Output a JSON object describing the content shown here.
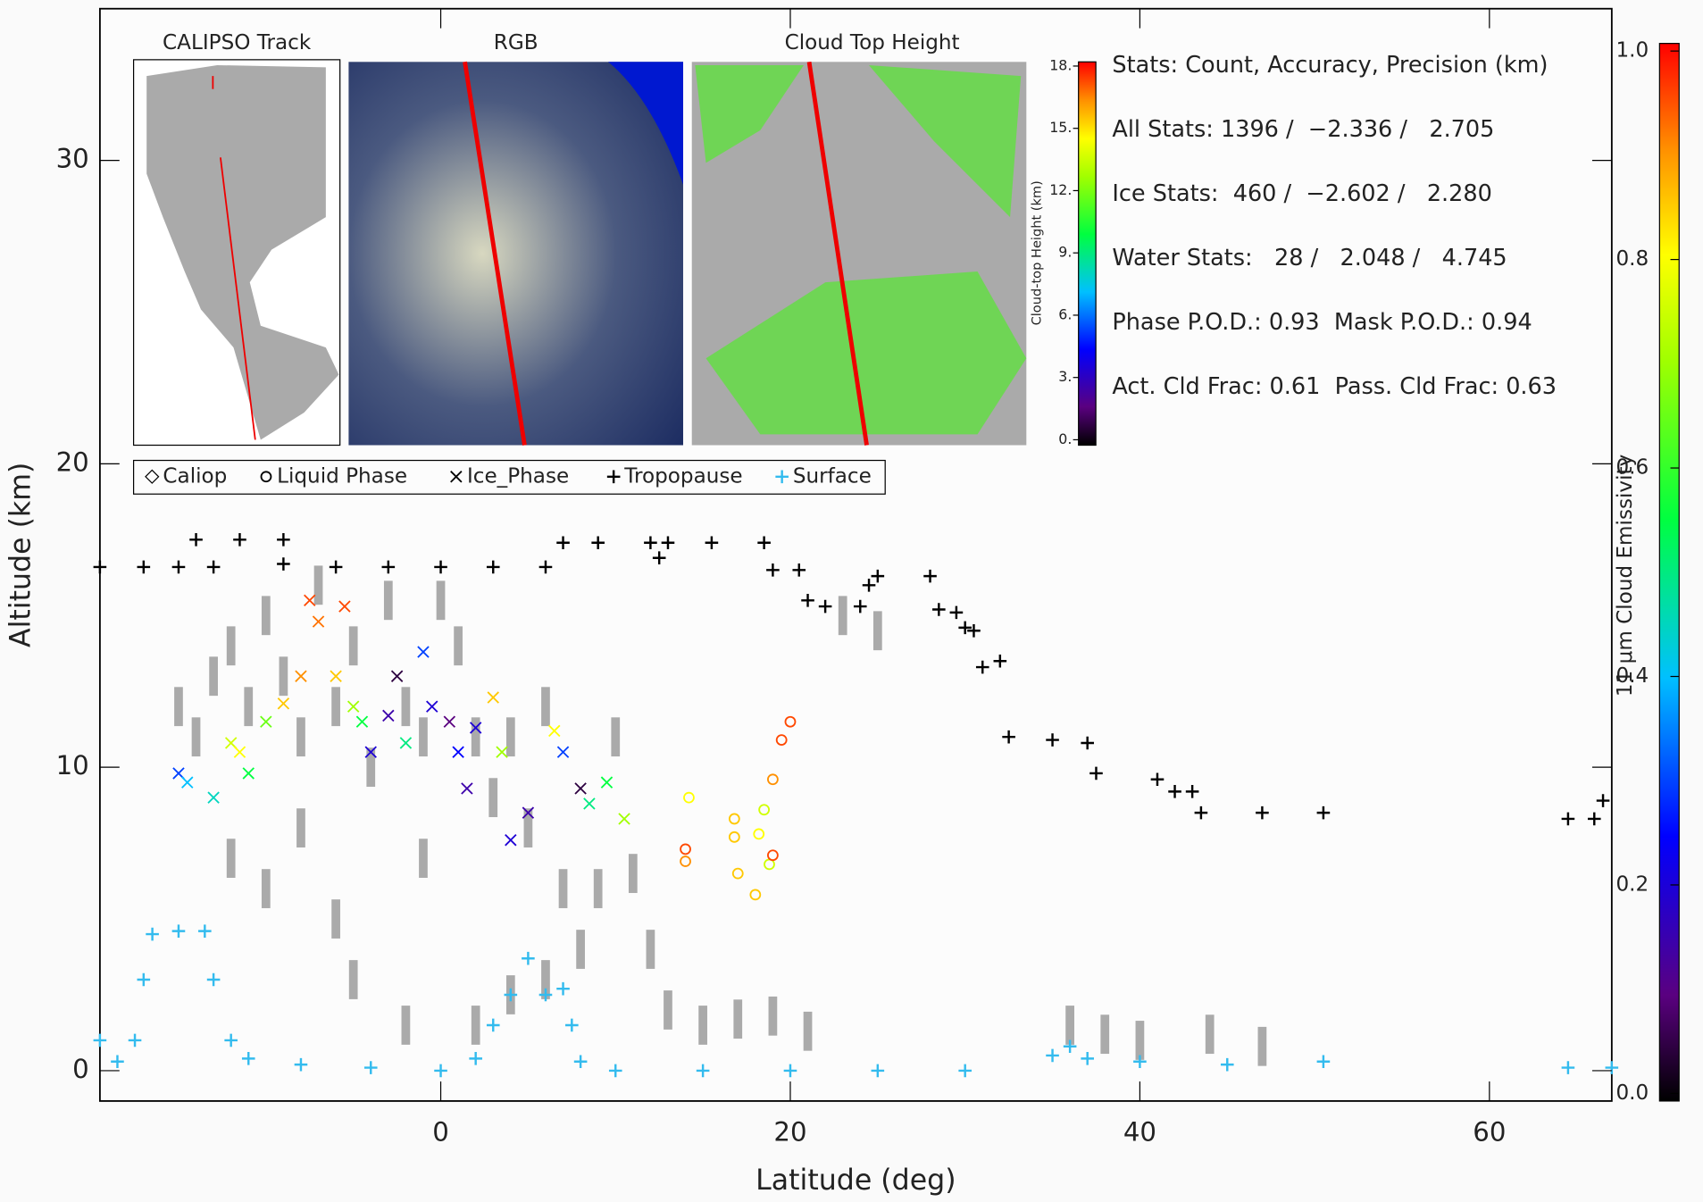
{
  "chart_data": {
    "type": "scatter",
    "xlabel": "Latitude (deg)",
    "ylabel": "Altitude (km)",
    "xlim": [
      -19.5,
      67
    ],
    "ylim": [
      -1,
      35
    ],
    "xticks": [
      0,
      20,
      40,
      60
    ],
    "yticks": [
      0,
      10,
      20,
      30
    ],
    "colormap": "rainbow",
    "series": [
      {
        "name": "Caliop",
        "color": "#aaaaaa",
        "marker": "rect",
        "x": [
          -15,
          -14,
          -13,
          -12,
          -11,
          -10,
          -9,
          -8,
          -7,
          -6,
          -5,
          -4,
          -3,
          -2,
          -1,
          0,
          1,
          2,
          3,
          4,
          5,
          6,
          7,
          8,
          9,
          10,
          11,
          12,
          13,
          15,
          17,
          19,
          21,
          -12,
          -10,
          -8,
          -5,
          -2,
          2,
          4,
          6,
          23,
          25,
          36,
          38,
          40,
          44,
          47,
          -6,
          -1
        ],
        "values": [
          12,
          11,
          13,
          14,
          12,
          15,
          13,
          11,
          16,
          12,
          14,
          10,
          15.5,
          12,
          11,
          15.5,
          14,
          11,
          9,
          11,
          8,
          12,
          6,
          4,
          6,
          11,
          6.5,
          4,
          2,
          1.5,
          1.7,
          1.8,
          1.3,
          7,
          6,
          8,
          3,
          1.5,
          1.5,
          2.5,
          3,
          15,
          14.5,
          1.5,
          1.2,
          1,
          1.2,
          0.8,
          5,
          7
        ]
      },
      {
        "name": "Liquid Phase",
        "color": "#000000",
        "marker": "circle",
        "x": [
          14,
          14,
          14.2,
          16.8,
          16.8,
          17,
          18,
          18.2,
          18.5,
          18.8,
          19,
          19,
          19.5,
          20
        ],
        "values": [
          7.3,
          6.9,
          9,
          8.3,
          7.7,
          6.5,
          5.8,
          7.8,
          8.6,
          6.8,
          9.6,
          7.1,
          10.9,
          11.5
        ],
        "emissivity": [
          0.95,
          0.9,
          0.8,
          0.85,
          0.85,
          0.85,
          0.85,
          0.8,
          0.75,
          0.75,
          0.9,
          0.95,
          0.95,
          0.95
        ]
      },
      {
        "name": "Ice_Phase",
        "color": "#000000",
        "marker": "x",
        "x": [
          -15,
          -14.5,
          -13,
          -12,
          -11.5,
          -11,
          -10,
          -9,
          -8,
          -7.5,
          -7,
          -6,
          -5.5,
          -5,
          -4.5,
          -4,
          -3,
          -2,
          -1,
          -0.5,
          0.5,
          1,
          1.5,
          2,
          3,
          3.5,
          4,
          5,
          6.5,
          7,
          8,
          8.5,
          9.5,
          10.5,
          -2.5
        ],
        "values": [
          9.8,
          9.5,
          9,
          10.8,
          10.5,
          9.8,
          11.5,
          12.1,
          13,
          15.5,
          14.8,
          13,
          15.3,
          12,
          11.5,
          10.5,
          11.7,
          10.8,
          13.8,
          12,
          11.5,
          10.5,
          9.3,
          11.3,
          12.3,
          10.5,
          7.6,
          8.5,
          11.2,
          10.5,
          9.3,
          8.8,
          9.5,
          8.3,
          13
        ],
        "emissivity": [
          0.3,
          0.4,
          0.45,
          0.75,
          0.8,
          0.55,
          0.65,
          0.85,
          0.9,
          0.95,
          0.92,
          0.85,
          0.95,
          0.7,
          0.55,
          0.2,
          0.15,
          0.5,
          0.3,
          0.2,
          0.1,
          0.25,
          0.15,
          0.2,
          0.85,
          0.7,
          0.2,
          0.15,
          0.8,
          0.3,
          0.05,
          0.5,
          0.55,
          0.7,
          0.05
        ]
      },
      {
        "name": "Tropopause",
        "color": "#000000",
        "marker": "plus",
        "x": [
          -19.5,
          -17,
          -15,
          -13,
          -14,
          -11.5,
          -9,
          -9,
          -6,
          -3,
          0,
          3,
          6,
          7,
          9,
          12,
          12.5,
          13,
          15.5,
          18.5,
          19,
          20.5,
          21,
          22,
          24,
          24.5,
          25,
          28,
          28.5,
          29.5,
          30,
          30.5,
          31,
          32,
          32.5,
          35,
          37,
          37.5,
          41,
          42,
          43,
          43.5,
          47,
          50.5,
          64.5,
          66,
          66.5
        ],
        "values": [
          16.6,
          16.6,
          16.6,
          16.6,
          17.5,
          17.5,
          17.5,
          16.7,
          16.6,
          16.6,
          16.6,
          16.6,
          16.6,
          17.4,
          17.4,
          17.4,
          16.9,
          17.4,
          17.4,
          17.4,
          16.5,
          16.5,
          15.5,
          15.3,
          15.3,
          16,
          16.3,
          16.3,
          15.2,
          15.1,
          14.6,
          14.5,
          13.3,
          13.5,
          11,
          10.9,
          10.8,
          9.8,
          9.6,
          9.2,
          9.2,
          8.5,
          8.5,
          8.5,
          8.3,
          8.3,
          8.9
        ]
      },
      {
        "name": "Surface",
        "color": "#33bbee",
        "marker": "plus",
        "x": [
          -19.5,
          -18.5,
          -17.5,
          -17,
          -16.5,
          -15,
          -13.5,
          -13,
          -12,
          -11,
          -8,
          -4,
          0,
          2,
          3,
          4,
          5,
          6,
          7,
          7.5,
          8,
          10,
          15,
          20,
          25,
          30,
          35,
          36,
          37,
          40,
          45,
          50.5,
          64.5,
          67
        ],
        "values": [
          1,
          0.3,
          1,
          3,
          4.5,
          4.6,
          4.6,
          3,
          1,
          0.4,
          0.2,
          0.1,
          0,
          0.4,
          1.5,
          2.5,
          3.7,
          2.5,
          2.7,
          1.5,
          0.3,
          0,
          0,
          0,
          0,
          0,
          0.5,
          0.8,
          0.4,
          0.3,
          0.2,
          0.3,
          0.1,
          0.1
        ]
      }
    ],
    "colorbar": {
      "label": "11 μm Cloud Emissivity",
      "lim": [
        0,
        1
      ],
      "ticks": [
        {
          "value": 0,
          "label": "0.0"
        },
        {
          "value": 0.2,
          "label": "0.2"
        },
        {
          "value": 0.4,
          "label": "0.4"
        },
        {
          "value": 0.6,
          "label": "0.6"
        },
        {
          "value": 0.8,
          "label": "0.8"
        },
        {
          "value": 1,
          "label": "1.0"
        }
      ]
    },
    "insets": {
      "track_title": "CALIPSO Track",
      "rgb_title": "RGB",
      "cth_title": "Cloud Top Height",
      "cth_colorbar": {
        "label": "Cloud-top Height (km)",
        "lim": [
          0,
          18.2
        ],
        "ticks": [
          {
            "value": 0,
            "label": "0."
          },
          {
            "value": 3,
            "label": "3."
          },
          {
            "value": 6,
            "label": "6."
          },
          {
            "value": 9,
            "label": "9."
          },
          {
            "value": 12,
            "label": "12."
          },
          {
            "value": 15,
            "label": "15."
          },
          {
            "value": 18,
            "label": "18."
          }
        ]
      }
    },
    "annotations": [
      "Stats: Count, Accuracy, Precision (km)",
      "All Stats: 1396 /  −2.336 /   2.705",
      "Ice Stats:  460 /  −2.602 /   2.280",
      "Water Stats:   28 /   2.048 /   4.745",
      "Phase P.O.D.: 0.93  Mask P.O.D.: 0.94",
      "Act. Cld Frac: 0.61  Pass. Cld Frac: 0.63"
    ]
  }
}
